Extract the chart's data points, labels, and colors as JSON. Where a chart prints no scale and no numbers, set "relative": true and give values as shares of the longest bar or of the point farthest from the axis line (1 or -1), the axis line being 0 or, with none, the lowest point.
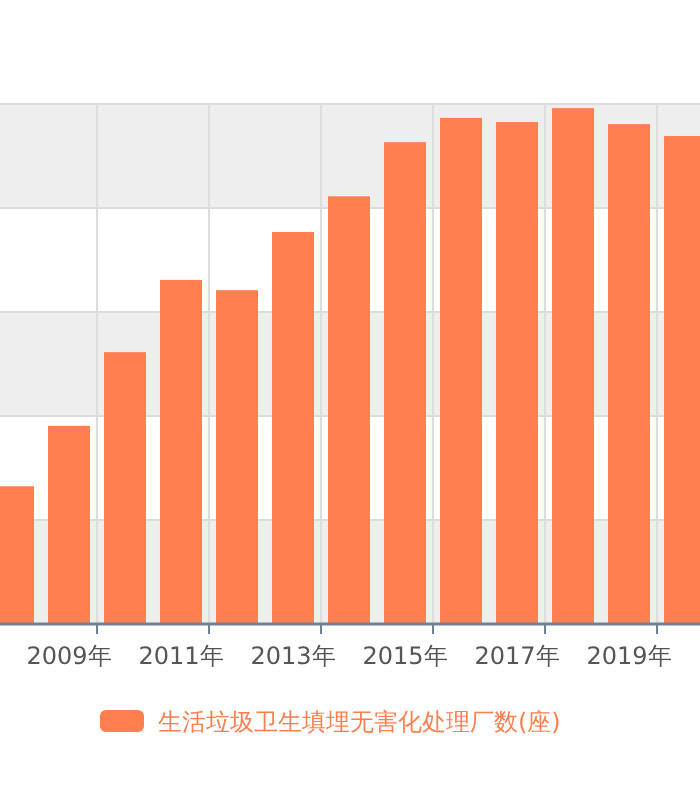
{
  "chart_data": {
    "type": "bar",
    "relative": true,
    "categories": [
      null,
      "2009年",
      null,
      "2011年",
      null,
      "2013年",
      null,
      "2015年",
      null,
      "2017年",
      null,
      "2019年",
      null
    ],
    "series": [
      {
        "name": "生活垃圾卫生填埋无害化处理厂数(座)",
        "color": "#fd7f4f",
        "values": [
          0.267,
          0.384,
          0.527,
          0.667,
          0.647,
          0.76,
          0.829,
          0.934,
          0.981,
          0.973,
          1,
          0.969,
          0.946
        ]
      }
    ],
    "bands": [
      {
        "axis": "y",
        "from": 0.8064,
        "to": 1.008,
        "color": "#eeeeee"
      },
      {
        "axis": "y",
        "from": 0.4032,
        "to": 0.6048,
        "color": "#eeeeee"
      },
      {
        "axis": "y",
        "from": 0,
        "to": 0.2016,
        "color": "#eeeeee"
      }
    ],
    "grid": true,
    "legend": "bottom"
  }
}
